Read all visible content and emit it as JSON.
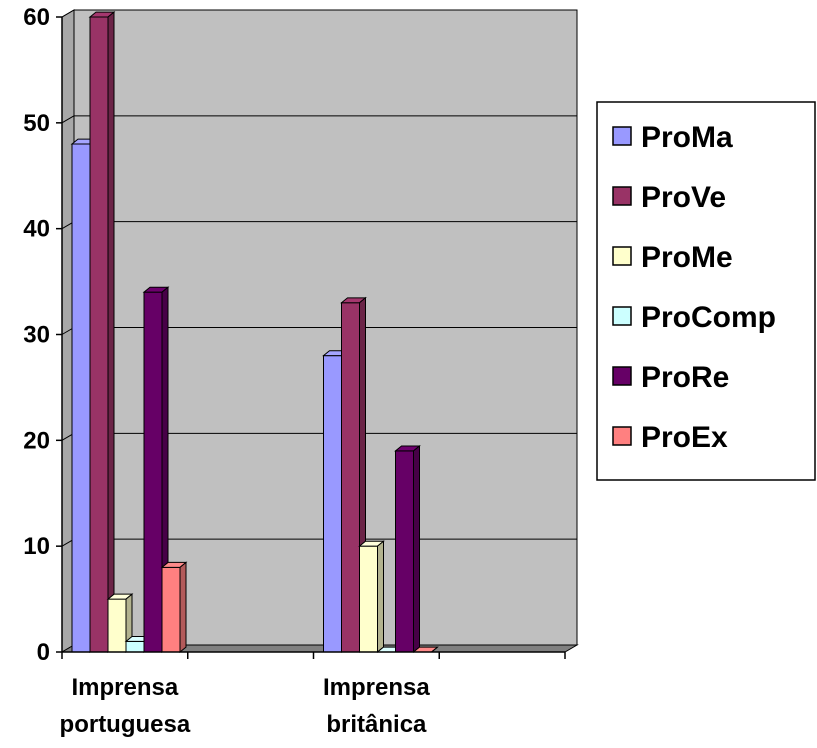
{
  "chart_data": {
    "type": "bar",
    "categories": [
      "Imprensa portuguesa",
      "Imprensa britânica"
    ],
    "category_lines": [
      [
        "Imprensa",
        "portuguesa"
      ],
      [
        "Imprensa",
        "britânica"
      ]
    ],
    "series": [
      {
        "name": "ProMa",
        "values": [
          48,
          28
        ],
        "color": "#9999ff"
      },
      {
        "name": "ProVe",
        "values": [
          60,
          33
        ],
        "color": "#993366"
      },
      {
        "name": "ProMe",
        "values": [
          5,
          10
        ],
        "color": "#ffffcc"
      },
      {
        "name": "ProComp",
        "values": [
          1,
          0
        ],
        "color": "#ccffff"
      },
      {
        "name": "ProRe",
        "values": [
          34,
          19
        ],
        "color": "#660066"
      },
      {
        "name": "ProEx",
        "values": [
          8,
          0
        ],
        "color": "#ff8080"
      }
    ],
    "ylim": [
      0,
      60
    ],
    "yticks": [
      0,
      10,
      20,
      30,
      40,
      50,
      60
    ],
    "grid": true,
    "legend": "right",
    "plot_background": "#c0c0c0",
    "title": "",
    "xlabel": "",
    "ylabel": ""
  }
}
